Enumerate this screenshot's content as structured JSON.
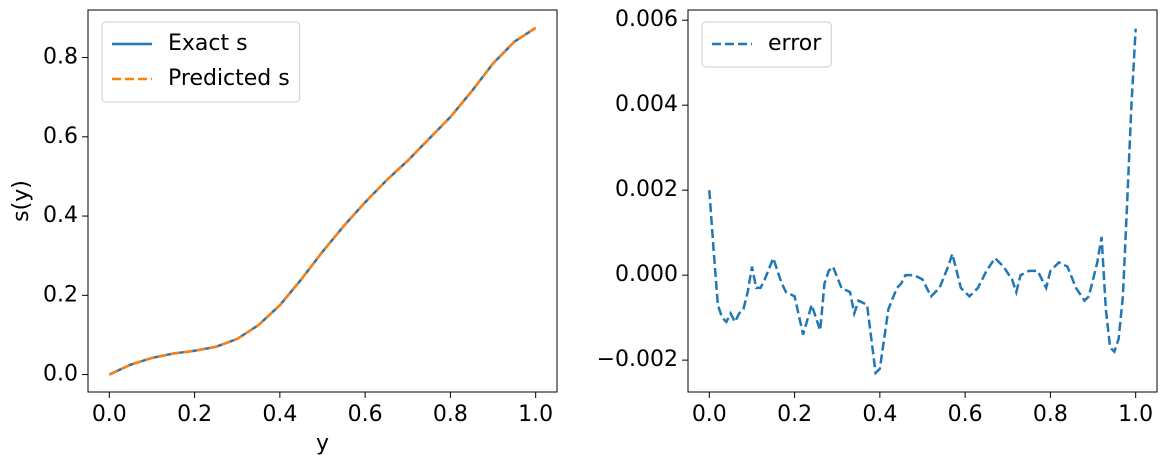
{
  "chart_data": [
    {
      "type": "line",
      "ylabel": "s(y)",
      "xlabel": "y",
      "legend": "upper left",
      "x": [
        0,
        0.05,
        0.1,
        0.15,
        0.2,
        0.25,
        0.3,
        0.35,
        0.4,
        0.45,
        0.5,
        0.55,
        0.6,
        0.65,
        0.7,
        0.75,
        0.8,
        0.85,
        0.9,
        0.95,
        1.0
      ],
      "series": [
        {
          "name": "Exact s",
          "color": "#1f77b4",
          "linestyle": "solid",
          "values": [
            0.0,
            0.025,
            0.042,
            0.053,
            0.06,
            0.07,
            0.09,
            0.125,
            0.175,
            0.24,
            0.31,
            0.375,
            0.435,
            0.49,
            0.54,
            0.595,
            0.65,
            0.715,
            0.785,
            0.84,
            0.875
          ]
        },
        {
          "name": "Predicted s",
          "color": "#ff7f0e",
          "linestyle": "dashed",
          "values": [
            0.0,
            0.025,
            0.042,
            0.053,
            0.06,
            0.07,
            0.09,
            0.125,
            0.175,
            0.24,
            0.31,
            0.375,
            0.435,
            0.49,
            0.54,
            0.595,
            0.65,
            0.715,
            0.785,
            0.84,
            0.875
          ]
        }
      ],
      "xlim": [
        -0.05,
        1.05
      ],
      "xticks": [
        {
          "value": 0,
          "label": "0.0"
        },
        0.2,
        0.4,
        0.6,
        0.8,
        {
          "value": 1,
          "label": "1.0"
        }
      ],
      "ylim": [
        -0.044,
        0.92
      ],
      "yticks": [
        {
          "value": 0,
          "label": "0.0"
        },
        0.2,
        0.4,
        0.6,
        0.8
      ]
    },
    {
      "type": "line",
      "legend": "upper left",
      "x": [
        0,
        0.01,
        0.02,
        0.03,
        0.04,
        0.05,
        0.06,
        0.07,
        0.08,
        0.09,
        0.1,
        0.11,
        0.12,
        0.13,
        0.15,
        0.17,
        0.18,
        0.2,
        0.22,
        0.24,
        0.26,
        0.27,
        0.28,
        0.29,
        0.31,
        0.33,
        0.34,
        0.35,
        0.37,
        0.39,
        0.4,
        0.42,
        0.44,
        0.45,
        0.46,
        0.48,
        0.5,
        0.52,
        0.54,
        0.56,
        0.57,
        0.59,
        0.61,
        0.63,
        0.65,
        0.67,
        0.69,
        0.71,
        0.72,
        0.73,
        0.75,
        0.77,
        0.79,
        0.8,
        0.82,
        0.84,
        0.86,
        0.88,
        0.89,
        0.91,
        0.92,
        0.93,
        0.94,
        0.95,
        0.96,
        0.97,
        0.98,
        0.99,
        1.0
      ],
      "series": [
        {
          "name": "error",
          "color": "#1f77b4",
          "linestyle": "dashed",
          "values": [
            0.002,
            0.0006,
            -0.0007,
            -0.001,
            -0.0011,
            -0.0009,
            -0.0011,
            -0.0009,
            -0.0008,
            -0.0004,
            0.0002,
            -0.0003,
            -0.0003,
            -0.0001,
            0.0004,
            -0.0002,
            -0.0004,
            -0.0005,
            -0.0014,
            -0.0007,
            -0.0013,
            -0.0002,
            0.0001,
            0.0002,
            -0.0003,
            -0.0004,
            -0.0009,
            -0.0006,
            -0.0007,
            -0.0023,
            -0.0022,
            -0.0008,
            -0.0003,
            -0.0002,
            0.0,
            0.0,
            -0.0001,
            -0.0005,
            -0.0003,
            0.0002,
            0.0005,
            -0.0003,
            -0.0005,
            -0.0003,
            0.0001,
            0.0004,
            0.0002,
            -0.0001,
            -0.0004,
            0.0,
            0.0001,
            0.0001,
            -0.0003,
            0.0001,
            0.0003,
            0.0002,
            -0.0003,
            -0.0006,
            -0.0005,
            0.0003,
            0.0009,
            -0.0008,
            -0.0017,
            -0.0018,
            -0.0015,
            -0.0005,
            0.0017,
            0.004,
            0.0058
          ]
        }
      ],
      "xlim": [
        -0.05,
        1.05
      ],
      "xticks": [
        {
          "value": 0,
          "label": "0.0"
        },
        0.2,
        0.4,
        0.6,
        0.8,
        {
          "value": 1,
          "label": "1.0"
        }
      ],
      "ylim": [
        -0.00275,
        0.00624
      ],
      "yticks": [
        {
          "value": -0.002,
          "label": "−0.002"
        },
        {
          "value": 0,
          "label": "0.000"
        },
        0.002,
        0.004,
        0.006
      ]
    }
  ]
}
